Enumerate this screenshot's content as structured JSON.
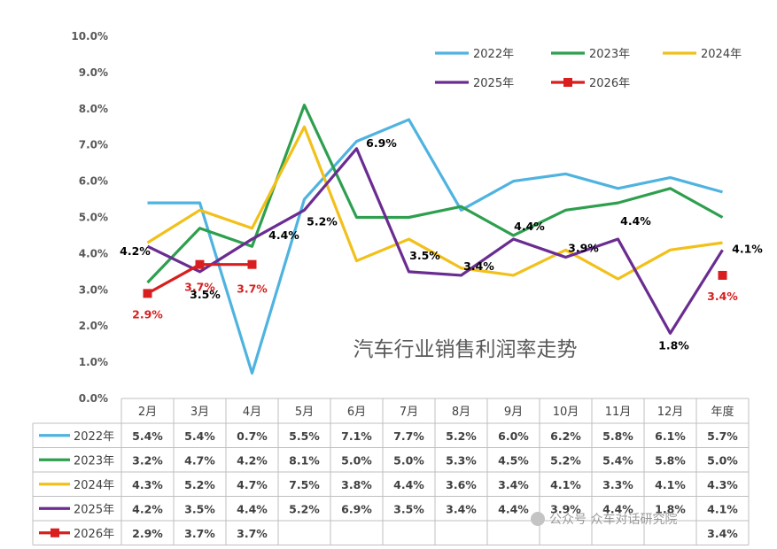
{
  "chart_data": {
    "type": "line",
    "title": "汽车行业销售利润率走势",
    "categories": [
      "2月",
      "3月",
      "4月",
      "5月",
      "6月",
      "7月",
      "8月",
      "9月",
      "10月",
      "11月",
      "12月",
      "年度"
    ],
    "y_ticks": [
      "0.0%",
      "1.0%",
      "2.0%",
      "3.0%",
      "4.0%",
      "5.0%",
      "6.0%",
      "7.0%",
      "8.0%",
      "9.0%",
      "10.0%"
    ],
    "ylim": [
      0,
      10
    ],
    "grid": false,
    "legend_position": "top-right",
    "series": [
      {
        "name": "2022年",
        "color": "#4fb3e0",
        "marker": false,
        "values": [
          5.4,
          5.4,
          0.7,
          5.5,
          7.1,
          7.7,
          5.2,
          6.0,
          6.2,
          5.8,
          6.1,
          5.7
        ],
        "labels": [
          "5.4%",
          "5.4%",
          "0.7%",
          "5.5%",
          "7.1%",
          "7.7%",
          "5.2%",
          "6.0%",
          "6.2%",
          "5.8%",
          "6.1%",
          "5.7%"
        ]
      },
      {
        "name": "2023年",
        "color": "#2e9f4e",
        "marker": false,
        "values": [
          3.2,
          4.7,
          4.2,
          8.1,
          5.0,
          5.0,
          5.3,
          4.5,
          5.2,
          5.4,
          5.8,
          5.0
        ],
        "labels": [
          "3.2%",
          "4.7%",
          "4.2%",
          "8.1%",
          "5.0%",
          "5.0%",
          "5.3%",
          "4.5%",
          "5.2%",
          "5.4%",
          "5.8%",
          "5.0%"
        ]
      },
      {
        "name": "2024年",
        "color": "#f2c01a",
        "marker": false,
        "values": [
          4.3,
          5.2,
          4.7,
          7.5,
          3.8,
          4.4,
          3.6,
          3.4,
          4.1,
          3.3,
          4.1,
          4.3
        ],
        "labels": [
          "4.3%",
          "5.2%",
          "4.7%",
          "7.5%",
          "3.8%",
          "4.4%",
          "3.6%",
          "3.4%",
          "4.1%",
          "3.3%",
          "4.1%",
          "4.3%"
        ]
      },
      {
        "name": "2025年",
        "color": "#6a2c91",
        "marker": false,
        "values": [
          4.2,
          3.5,
          4.4,
          5.2,
          6.9,
          3.5,
          3.4,
          4.4,
          3.9,
          4.4,
          1.8,
          4.1
        ],
        "labels": [
          "4.2%",
          "3.5%",
          "4.4%",
          "5.2%",
          "6.9%",
          "3.5%",
          "3.4%",
          "4.4%",
          "3.9%",
          "4.4%",
          "1.8%",
          "4.1%"
        ]
      },
      {
        "name": "2026年",
        "color": "#d81e1e",
        "marker": true,
        "values": [
          2.9,
          3.7,
          3.7,
          null,
          null,
          null,
          null,
          null,
          null,
          null,
          null,
          3.4
        ],
        "labels": [
          "2.9%",
          "3.7%",
          "3.7%",
          "",
          "",
          "",
          "",
          "",
          "",
          "",
          "",
          "3.4%"
        ]
      }
    ],
    "annotations": [
      {
        "series": "2025年",
        "index": 0,
        "text": "4.2%",
        "color": "#000000"
      },
      {
        "series": "2025年",
        "index": 1,
        "text": "3.5%",
        "color": "#000000"
      },
      {
        "series": "2025年",
        "index": 2,
        "text": "4.4%",
        "color": "#000000"
      },
      {
        "series": "2025年",
        "index": 3,
        "text": "5.2%",
        "color": "#000000"
      },
      {
        "series": "2025年",
        "index": 4,
        "text": "6.9%",
        "color": "#000000"
      },
      {
        "series": "2025年",
        "index": 5,
        "text": "3.5%",
        "color": "#000000"
      },
      {
        "series": "2025年",
        "index": 6,
        "text": "3.4%",
        "color": "#000000"
      },
      {
        "series": "2025年",
        "index": 7,
        "text": "4.4%",
        "color": "#000000"
      },
      {
        "series": "2025年",
        "index": 8,
        "text": "3.9%",
        "color": "#000000"
      },
      {
        "series": "2025年",
        "index": 9,
        "text": "4.4%",
        "color": "#000000"
      },
      {
        "series": "2025年",
        "index": 10,
        "text": "1.8%",
        "color": "#000000"
      },
      {
        "series": "2025年",
        "index": 11,
        "text": "4.1%",
        "color": "#000000"
      },
      {
        "series": "2026年",
        "index": 0,
        "text": "2.9%",
        "color": "#d81e1e"
      },
      {
        "series": "2026年",
        "index": 1,
        "text": "3.7%",
        "color": "#d81e1e"
      },
      {
        "series": "2026年",
        "index": 2,
        "text": "3.7%",
        "color": "#d81e1e"
      },
      {
        "series": "2026年",
        "index": 11,
        "text": "3.4%",
        "color": "#d81e1e"
      }
    ]
  },
  "watermark": "公众号 众车对话研究院"
}
